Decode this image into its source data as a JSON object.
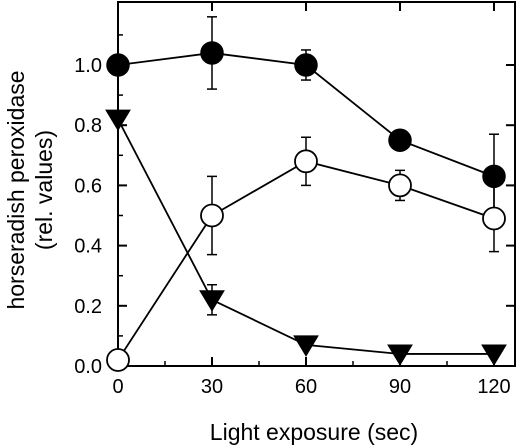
{
  "chart_data": {
    "type": "line",
    "title": "",
    "xlabel": "Light exposure (sec)",
    "ylabel_lines": [
      "horseradish peroxidase",
      "(rel. values)"
    ],
    "xlim": [
      0,
      120
    ],
    "ylim": [
      0,
      1.2
    ],
    "x_ticks": [
      0,
      30,
      60,
      90,
      120
    ],
    "x_tick_labels": [
      "0",
      "30",
      "60",
      "90",
      "120"
    ],
    "y_ticks": [
      0.0,
      0.2,
      0.4,
      0.6,
      0.8,
      1.0
    ],
    "y_tick_labels": [
      "0.0",
      "0.2",
      "0.4",
      "0.6",
      "0.8",
      "1.0"
    ],
    "grid": false,
    "legend": "none",
    "x": [
      0,
      30,
      60,
      90,
      120
    ],
    "series": [
      {
        "marker": "filled-circle",
        "values": [
          1.0,
          1.04,
          1.0,
          0.75,
          0.63
        ],
        "errors": [
          0.0,
          0.12,
          0.05,
          0.0,
          0.14
        ]
      },
      {
        "marker": "open-circle",
        "values": [
          0.02,
          0.5,
          0.68,
          0.6,
          0.49
        ],
        "errors": [
          0.0,
          0.13,
          0.08,
          0.05,
          0.11
        ]
      },
      {
        "marker": "filled-triangle-down",
        "values": [
          0.82,
          0.22,
          0.07,
          0.04,
          0.04
        ],
        "errors": [
          0.0,
          0.05,
          0.0,
          0.0,
          0.0
        ]
      }
    ],
    "colors": {
      "stroke": "#000000",
      "fill": "#000000",
      "background": "#ffffff"
    }
  }
}
